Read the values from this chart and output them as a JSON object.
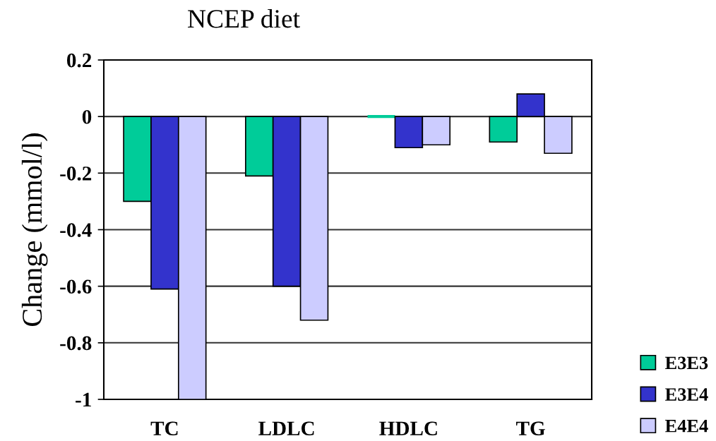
{
  "chart_data": {
    "type": "bar",
    "title": "NCEP diet",
    "ylabel": "Change (mmol/l)",
    "categories": [
      "TC",
      "LDLC",
      "HDLC",
      "TG"
    ],
    "series": [
      {
        "name": "E3E3",
        "color": "#00cc99",
        "values": [
          -0.3,
          -0.21,
          0,
          -0.09
        ]
      },
      {
        "name": "E3E4",
        "color": "#3333cc",
        "values": [
          -0.61,
          -0.6,
          -0.11,
          0.08
        ]
      },
      {
        "name": "E4E4",
        "color": "#ccccff",
        "values": [
          -1.0,
          -0.72,
          -0.1,
          -0.13
        ]
      }
    ],
    "ylim": [
      -1,
      0.2
    ],
    "yticks": [
      0.2,
      0,
      -0.2,
      -0.4,
      -0.6,
      -0.8,
      -1
    ],
    "grid": "y",
    "legend": "bottom right"
  }
}
